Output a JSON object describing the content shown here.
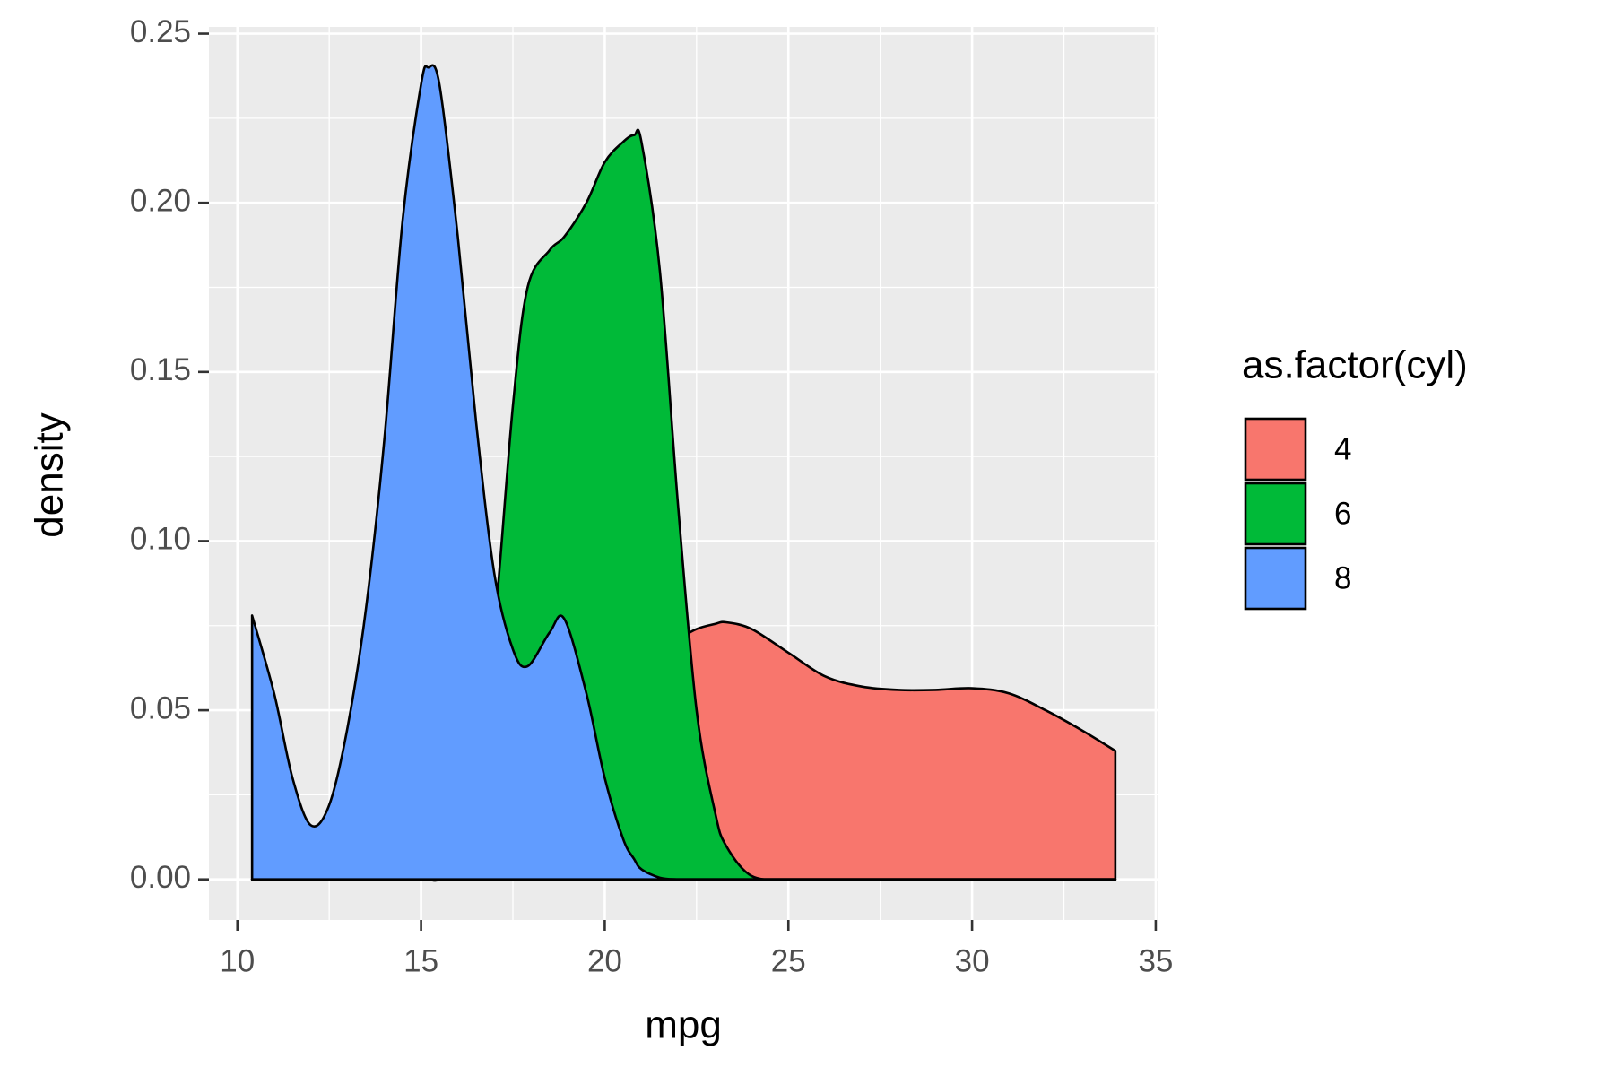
{
  "chart_data": {
    "type": "area",
    "x_label": "mpg",
    "y_label": "density",
    "x": [
      10.4,
      11,
      11.5,
      12,
      12.5,
      13,
      13.5,
      14,
      14.5,
      15,
      15.2,
      15.5,
      16,
      16.5,
      17,
      17.5,
      17.9,
      18.5,
      18.9,
      19.5,
      20,
      20.5,
      20.8,
      21,
      21.5,
      22,
      22.5,
      23,
      23.3,
      24,
      25,
      26,
      27,
      28,
      29,
      30,
      31,
      32,
      33,
      33.9
    ],
    "series": [
      {
        "name": "4",
        "color": "#f8766d",
        "values": [
          0,
          0,
          0,
          0,
          0,
          0,
          0,
          0,
          0,
          0,
          0,
          0,
          0.001,
          0.002,
          0.004,
          0.008,
          0.012,
          0.02,
          0.027,
          0.038,
          0.047,
          0.056,
          0.06,
          0.063,
          0.068,
          0.071,
          0.074,
          0.0755,
          0.076,
          0.074,
          0.067,
          0.06,
          0.057,
          0.056,
          0.056,
          0.0565,
          0.055,
          0.05,
          0.044,
          0.038
        ]
      },
      {
        "name": "6",
        "color": "#00ba38",
        "values": [
          0,
          0,
          0,
          0,
          0,
          0,
          0,
          0,
          0,
          0,
          0,
          0,
          0.005,
          0.03,
          0.075,
          0.14,
          0.175,
          0.186,
          0.19,
          0.2,
          0.212,
          0.218,
          0.22,
          0.218,
          0.18,
          0.11,
          0.05,
          0.02,
          0.01,
          0.001,
          0,
          0,
          0,
          0,
          0,
          0,
          0,
          0,
          0,
          0
        ]
      },
      {
        "name": "8",
        "color": "#619cff",
        "values": [
          0.078,
          0.055,
          0.03,
          0.016,
          0.022,
          0.045,
          0.08,
          0.13,
          0.195,
          0.235,
          0.24,
          0.235,
          0.19,
          0.135,
          0.09,
          0.068,
          0.063,
          0.073,
          0.077,
          0.055,
          0.03,
          0.012,
          0.006,
          0.003,
          0.0005,
          0,
          0,
          0,
          0,
          0,
          0,
          0,
          0,
          0,
          0,
          0,
          0,
          0,
          0,
          0
        ]
      }
    ],
    "xlim": [
      9.225,
      35.075
    ],
    "ylim": [
      -0.012,
      0.252
    ],
    "xticks": [
      10,
      15,
      20,
      25,
      30,
      35
    ],
    "yticks": [
      {
        "value": 0,
        "label": "0.00"
      },
      {
        "value": 0.05,
        "label": "0.05"
      },
      {
        "value": 0.1,
        "label": "0.10"
      },
      {
        "value": 0.15,
        "label": "0.15"
      },
      {
        "value": 0.2,
        "label": "0.20"
      },
      {
        "value": 0.25,
        "label": "0.25"
      }
    ],
    "grid": true,
    "legend_title": "as.factor(cyl)",
    "legend_position": "right"
  }
}
